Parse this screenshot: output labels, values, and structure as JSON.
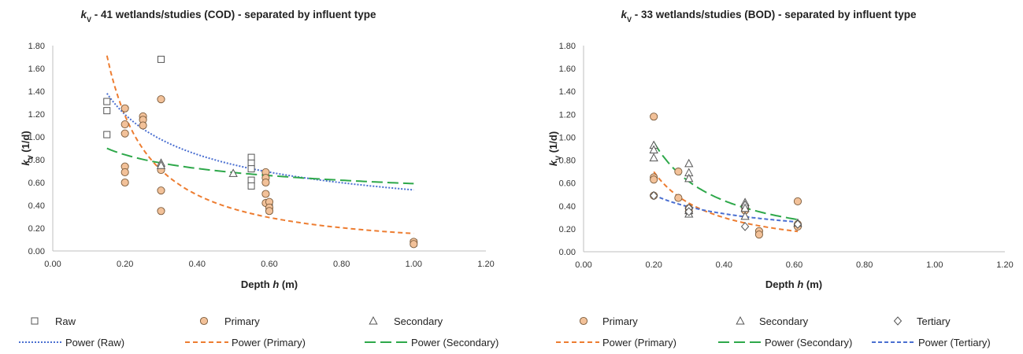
{
  "chart_data": [
    {
      "type": "scatter",
      "title_var": "k",
      "title_sub": "V",
      "title_rest": " - 41 wetlands/studies (COD) - separated by influent type",
      "xlabel_main": "Depth ",
      "xlabel_var": "h",
      "xlabel_unit": " (m)",
      "ylabel_var": "k",
      "ylabel_sub": "V",
      "ylabel_unit": " (1/d)",
      "xlim": [
        0,
        1.2
      ],
      "ylim": [
        0,
        1.8
      ],
      "xticks": [
        "0.00",
        "0.20",
        "0.40",
        "0.60",
        "0.80",
        "1.00",
        "1.20"
      ],
      "yticks": [
        "0.00",
        "0.20",
        "0.40",
        "0.60",
        "0.80",
        "1.00",
        "1.20",
        "1.40",
        "1.60",
        "1.80"
      ],
      "series": [
        {
          "name": "Raw",
          "marker": "square",
          "color": "#555555",
          "points": [
            [
              0.15,
              1.31
            ],
            [
              0.15,
              1.23
            ],
            [
              0.15,
              1.02
            ],
            [
              0.3,
              1.68
            ],
            [
              0.55,
              0.82
            ],
            [
              0.55,
              0.77
            ],
            [
              0.55,
              0.72
            ],
            [
              0.55,
              0.62
            ],
            [
              0.55,
              0.57
            ],
            [
              0.6,
              0.38
            ],
            [
              0.6,
              0.36
            ],
            [
              1.0,
              0.07
            ]
          ]
        },
        {
          "name": "Primary",
          "marker": "circle",
          "color": "#f2c199",
          "points": [
            [
              0.2,
              1.25
            ],
            [
              0.2,
              1.11
            ],
            [
              0.2,
              1.03
            ],
            [
              0.2,
              0.74
            ],
            [
              0.2,
              0.69
            ],
            [
              0.2,
              0.6
            ],
            [
              0.25,
              1.18
            ],
            [
              0.25,
              1.15
            ],
            [
              0.25,
              1.1
            ],
            [
              0.3,
              1.33
            ],
            [
              0.3,
              0.71
            ],
            [
              0.3,
              0.53
            ],
            [
              0.3,
              0.35
            ],
            [
              0.59,
              0.69
            ],
            [
              0.59,
              0.64
            ],
            [
              0.59,
              0.6
            ],
            [
              0.59,
              0.5
            ],
            [
              0.59,
              0.42
            ],
            [
              0.6,
              0.43
            ],
            [
              0.6,
              0.38
            ],
            [
              0.6,
              0.35
            ],
            [
              1.0,
              0.08
            ],
            [
              1.0,
              0.06
            ]
          ]
        },
        {
          "name": "Secondary",
          "marker": "triangle",
          "color": "#555555",
          "points": [
            [
              0.3,
              0.77
            ],
            [
              0.3,
              0.75
            ],
            [
              0.5,
              0.68
            ]
          ]
        }
      ],
      "trendlines": [
        {
          "name": "Power (Raw)",
          "style": "dotted",
          "color": "#4a6fd1",
          "a": 0.535,
          "b": -0.5
        },
        {
          "name": "Power (Primary)",
          "style": "dashed",
          "color": "#ed7d31",
          "a": 0.153,
          "b": -1.273
        },
        {
          "name": "Power (Secondary)",
          "style": "longdash",
          "color": "#2ea84a",
          "a": 0.59,
          "b": -0.222
        }
      ],
      "legend": {
        "markers": [
          "Raw",
          "Primary",
          "Secondary"
        ],
        "lines": [
          "Power (Raw)",
          "Power (Primary)",
          "Power (Secondary)"
        ]
      }
    },
    {
      "type": "scatter",
      "title_var": "k",
      "title_sub": "V",
      "title_rest": " - 33 wetlands/studies (BOD) - separated by influent type",
      "xlabel_main": "Depth ",
      "xlabel_var": "h",
      "xlabel_unit": " (m)",
      "ylabel_var": "k",
      "ylabel_sub": "V",
      "ylabel_unit": " (1/d)",
      "xlim": [
        0,
        1.2
      ],
      "ylim": [
        0,
        1.8
      ],
      "xticks": [
        "0.00",
        "0.20",
        "0.40",
        "0.60",
        "0.80",
        "1.00",
        "1.20"
      ],
      "yticks": [
        "0.00",
        "0.20",
        "0.40",
        "0.60",
        "0.80",
        "1.00",
        "1.20",
        "1.40",
        "1.60",
        "1.80"
      ],
      "series": [
        {
          "name": "Primary",
          "marker": "circle",
          "color": "#f2c199",
          "points": [
            [
              0.2,
              1.18
            ],
            [
              0.2,
              0.65
            ],
            [
              0.2,
              0.63
            ],
            [
              0.2,
              0.49
            ],
            [
              0.27,
              0.7
            ],
            [
              0.27,
              0.47
            ],
            [
              0.3,
              0.38
            ],
            [
              0.3,
              0.35
            ],
            [
              0.46,
              0.4
            ],
            [
              0.46,
              0.36
            ],
            [
              0.5,
              0.18
            ],
            [
              0.5,
              0.15
            ],
            [
              0.61,
              0.44
            ],
            [
              0.61,
              0.24
            ],
            [
              0.61,
              0.22
            ]
          ]
        },
        {
          "name": "Secondary",
          "marker": "triangle",
          "color": "#555555",
          "points": [
            [
              0.2,
              0.93
            ],
            [
              0.2,
              0.89
            ],
            [
              0.2,
              0.82
            ],
            [
              0.3,
              0.77
            ],
            [
              0.3,
              0.69
            ],
            [
              0.3,
              0.64
            ],
            [
              0.3,
              0.36
            ],
            [
              0.3,
              0.33
            ],
            [
              0.46,
              0.43
            ],
            [
              0.46,
              0.41
            ],
            [
              0.46,
              0.38
            ],
            [
              0.46,
              0.31
            ],
            [
              0.61,
              0.25
            ]
          ]
        },
        {
          "name": "Tertiary",
          "marker": "diamond",
          "color": "#555555",
          "points": [
            [
              0.2,
              0.49
            ],
            [
              0.3,
              0.38
            ],
            [
              0.3,
              0.35
            ],
            [
              0.46,
              0.22
            ],
            [
              0.61,
              0.24
            ]
          ]
        }
      ],
      "trendlines": [
        {
          "name": "Power (Primary)",
          "style": "dashed",
          "color": "#ed7d31",
          "a": 0.0965,
          "b": -1.23,
          "xrange": [
            0.2,
            0.61
          ]
        },
        {
          "name": "Power (Secondary)",
          "style": "longdash",
          "color": "#2ea84a",
          "a": 0.163,
          "b": -1.1,
          "xrange": [
            0.2,
            0.61
          ]
        },
        {
          "name": "Power (Tertiary)",
          "style": "shortdash",
          "color": "#4a6fd1",
          "a": 0.195,
          "b": -0.58,
          "xrange": [
            0.2,
            0.61
          ]
        }
      ],
      "legend": {
        "markers": [
          "Primary",
          "Secondary",
          "Tertiary"
        ],
        "lines": [
          "Power (Primary)",
          "Power (Secondary)",
          "Power (Tertiary)"
        ]
      }
    }
  ]
}
